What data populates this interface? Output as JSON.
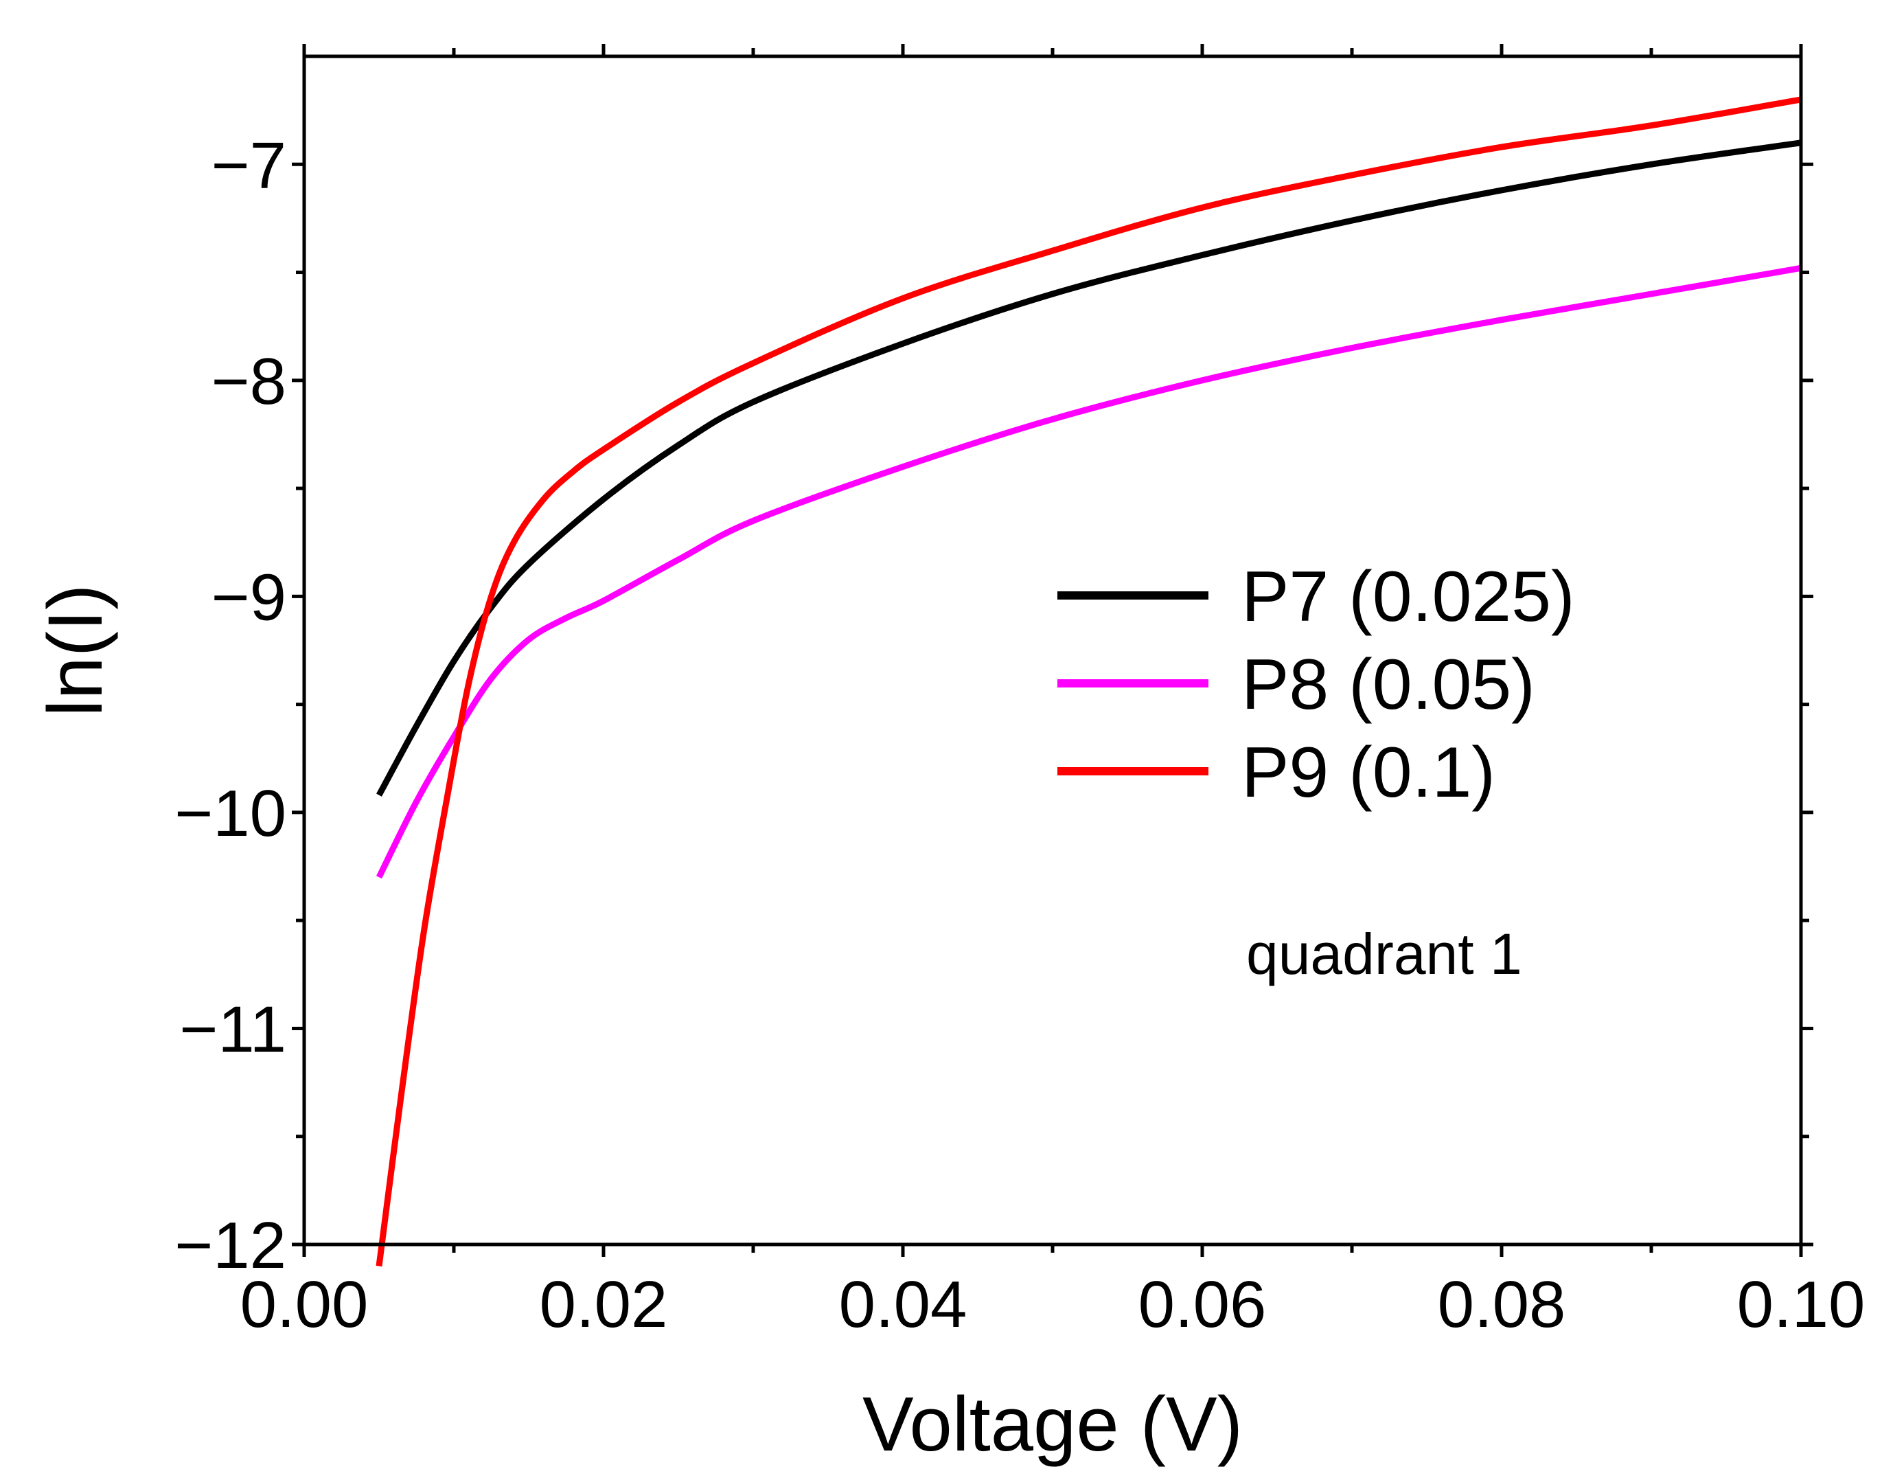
{
  "chart_data": {
    "type": "line",
    "title": "",
    "xlabel": "Voltage (V)",
    "ylabel": "ln(I)",
    "xlim": [
      0.0,
      0.1
    ],
    "ylim": [
      -12,
      -6.5
    ],
    "x_ticks": [
      0.0,
      0.02,
      0.04,
      0.06,
      0.08,
      0.1
    ],
    "x_tick_labels": [
      "0.00",
      "0.02",
      "0.04",
      "0.06",
      "0.08",
      "0.10"
    ],
    "x_minor_ticks": [
      0.01,
      0.03,
      0.05,
      0.07,
      0.09
    ],
    "y_ticks": [
      -12,
      -11,
      -10,
      -9,
      -8,
      -7
    ],
    "y_tick_labels": [
      "−12",
      "−11",
      "−10",
      "−9",
      "−8",
      "−7"
    ],
    "y_minor_ticks": [
      -11.5,
      -10.5,
      -9.5,
      -8.5,
      -7.5
    ],
    "grid": false,
    "legend_position": "center-right",
    "annotation": "quadrant 1",
    "series": [
      {
        "name": "P7  (0.025)",
        "color": "#000000",
        "x": [
          0.005,
          0.0075,
          0.01,
          0.0125,
          0.015,
          0.02,
          0.025,
          0.03,
          0.04,
          0.05,
          0.06,
          0.07,
          0.08,
          0.09,
          0.1
        ],
        "y": [
          -9.92,
          -9.6,
          -9.3,
          -9.05,
          -8.85,
          -8.55,
          -8.3,
          -8.1,
          -7.83,
          -7.6,
          -7.42,
          -7.26,
          -7.12,
          -7.0,
          -6.9
        ]
      },
      {
        "name": "P8  (0.05)",
        "color": "#ff00ff",
        "x": [
          0.005,
          0.0075,
          0.01,
          0.0125,
          0.015,
          0.0175,
          0.02,
          0.025,
          0.03,
          0.04,
          0.05,
          0.06,
          0.07,
          0.08,
          0.09,
          0.1
        ],
        "y": [
          -10.3,
          -9.95,
          -9.65,
          -9.38,
          -9.2,
          -9.1,
          -9.02,
          -8.83,
          -8.65,
          -8.4,
          -8.18,
          -8.0,
          -7.85,
          -7.72,
          -7.6,
          -7.48
        ]
      },
      {
        "name": "P9  (0.1)",
        "color": "#ff0000",
        "x": [
          0.005,
          0.0065,
          0.008,
          0.0095,
          0.011,
          0.0125,
          0.014,
          0.016,
          0.018,
          0.02,
          0.025,
          0.03,
          0.04,
          0.05,
          0.06,
          0.07,
          0.08,
          0.09,
          0.1
        ],
        "y": [
          -12.1,
          -11.3,
          -10.55,
          -9.95,
          -9.4,
          -9.0,
          -8.75,
          -8.55,
          -8.42,
          -8.32,
          -8.1,
          -7.92,
          -7.62,
          -7.4,
          -7.2,
          -7.05,
          -6.92,
          -6.82,
          -6.7
        ]
      }
    ]
  }
}
